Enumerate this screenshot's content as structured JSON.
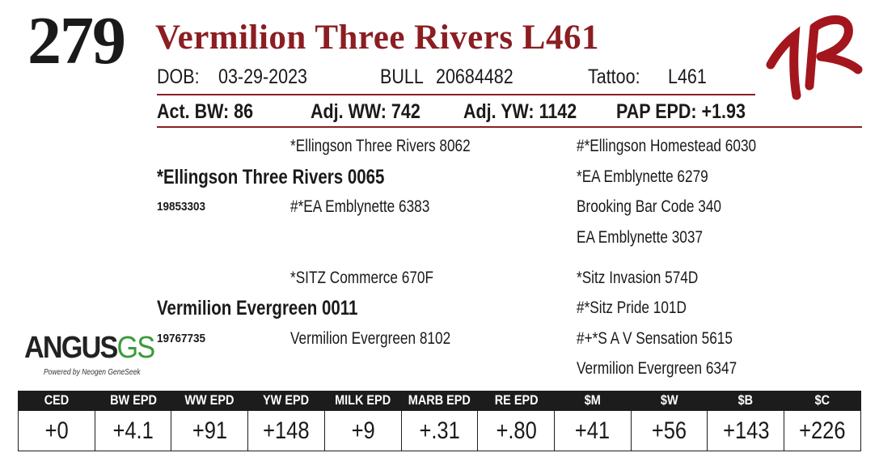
{
  "lot_number": "279",
  "animal_name": "Vermilion Three Rivers L461",
  "brand_mark": "1R",
  "dob_label": "DOB:",
  "dob_value": "03-29-2023",
  "sex_label": "BULL",
  "registration": "20684482",
  "tattoo_label": "Tattoo:",
  "tattoo_value": "L461",
  "performance": {
    "act_bw": "Act. BW: 86",
    "adj_ww": "Adj. WW: 742",
    "adj_yw": "Adj. YW: 1142",
    "pap_epd": "PAP EPD: +1.93"
  },
  "pedigree": {
    "sire": {
      "name": "*Ellingson Three Rivers 0065",
      "reg": "19853303",
      "sire": "*Ellingson Three Rivers 8062",
      "dam": "#*EA Emblynette 6383",
      "sire_sire": "#*Ellingson Homestead 6030",
      "sire_dam": "*EA Emblynette 6279",
      "dam_sire": "Brooking Bar Code 340",
      "dam_dam": "EA Emblynette 3037"
    },
    "dam": {
      "name": "Vermilion Evergreen 0011",
      "reg": "19767735",
      "sire": "*SITZ Commerce 670F",
      "dam": "Vermilion Evergreen 8102",
      "sire_sire": "*Sitz Invasion 574D",
      "sire_dam": "#*Sitz Pride 101D",
      "dam_sire": "#+*S A V Sensation 5615",
      "dam_dam": "Vermilion Evergreen 6347"
    }
  },
  "logo": {
    "main": "ANGUS",
    "suffix": "GS",
    "tagline": "Powered by Neogen GeneSeek"
  },
  "epd_headers": [
    "CED",
    "BW EPD",
    "WW EPD",
    "YW EPD",
    "MILK EPD",
    "MARB EPD",
    "RE EPD",
    "$M",
    "$W",
    "$B",
    "$C"
  ],
  "epd_values": [
    "+0",
    "+4.1",
    "+91",
    "+148",
    "+9",
    "+.31",
    "+.80",
    "+41",
    "+56",
    "+143",
    "+226"
  ],
  "colors": {
    "title": "#8b1e22",
    "brand": "#a3161d",
    "rule": "#8b1e22",
    "table_header_bg": "#1c1c1c",
    "logo_green": "#3a9b3a"
  }
}
